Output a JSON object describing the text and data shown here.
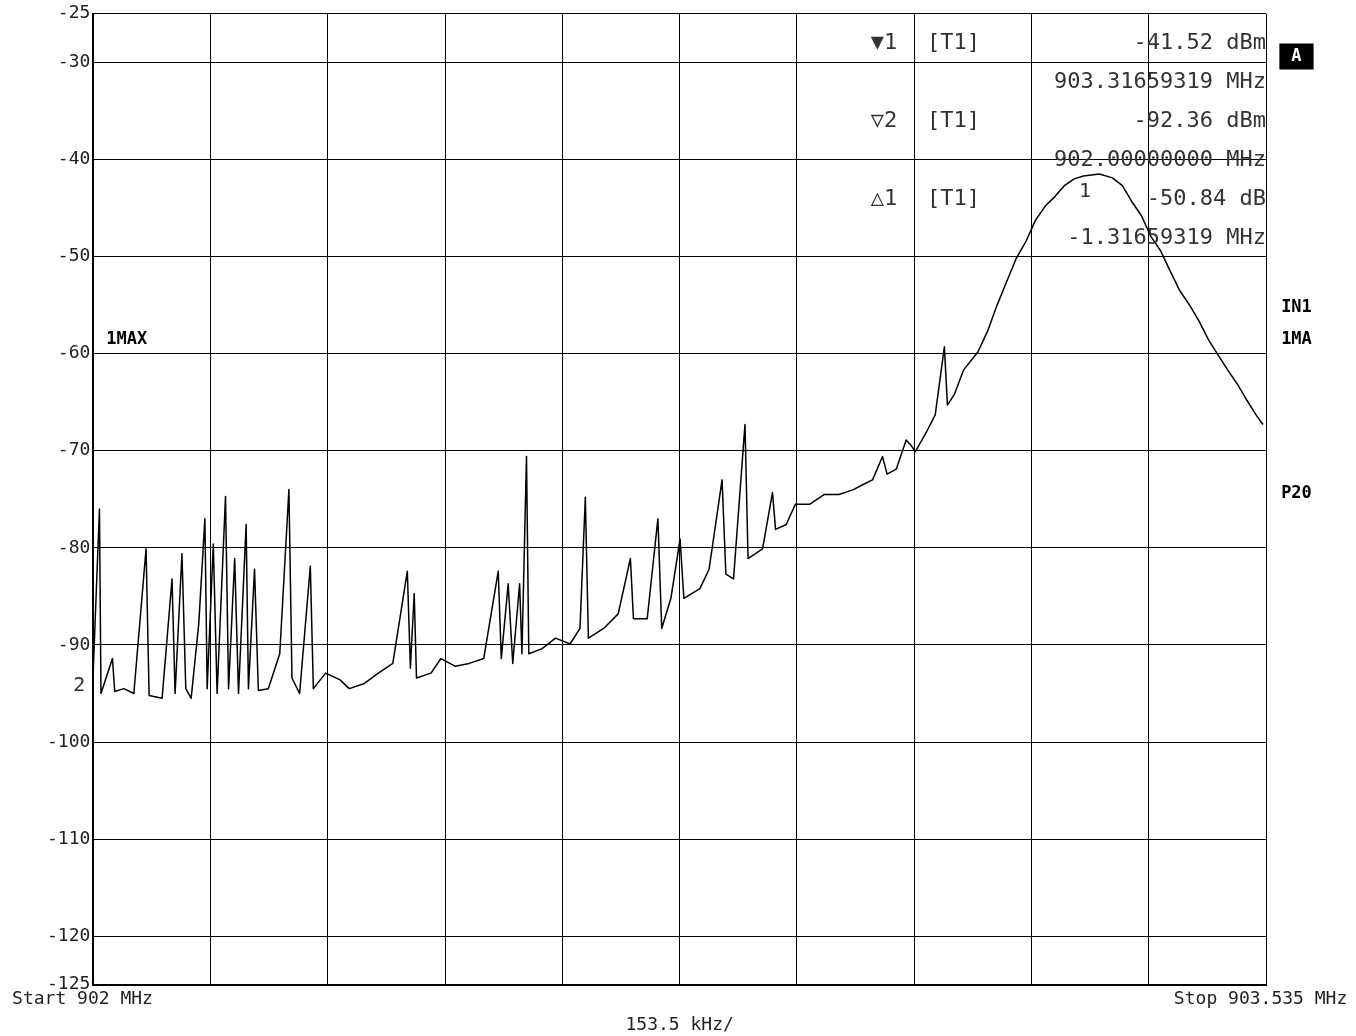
{
  "chart_data": {
    "type": "line",
    "color": "#000000",
    "marker": "none",
    "line_style": "solid",
    "grid": true,
    "xlabel": "153.5 kHz/",
    "xlim": [
      902,
      903.535
    ],
    "xticks": [
      902,
      {
        "value": 902.1535,
        "label": null
      },
      {
        "value": 902.307,
        "label": null
      },
      {
        "value": 902.4605,
        "label": null
      },
      {
        "value": 902.614,
        "label": null
      },
      {
        "value": 902.7675,
        "label": null
      },
      {
        "value": 902.921,
        "label": null
      },
      {
        "value": 903.0745,
        "label": null
      },
      {
        "value": 903.228,
        "label": null
      },
      {
        "value": 903.3815,
        "label": null
      },
      903.535
    ],
    "ylim": [
      -125,
      -25
    ],
    "yticks": [
      -125,
      -120,
      -110,
      -100,
      -90,
      -80,
      -70,
      -60,
      -50,
      -40,
      -30,
      -25
    ],
    "x": [
      902.0,
      902.008,
      902.01,
      902.025,
      902.028,
      902.04,
      902.053,
      902.069,
      902.073,
      902.09,
      902.103,
      902.107,
      902.116,
      902.121,
      902.128,
      902.138,
      902.146,
      902.149,
      902.157,
      902.162,
      902.173,
      902.177,
      902.185,
      902.19,
      902.2,
      902.203,
      902.211,
      902.216,
      902.229,
      902.244,
      902.256,
      902.26,
      902.27,
      902.284,
      902.288,
      902.304,
      902.323,
      902.335,
      902.354,
      902.373,
      902.392,
      902.411,
      902.415,
      902.42,
      902.423,
      902.442,
      902.455,
      902.474,
      902.492,
      902.511,
      902.53,
      902.534,
      902.543,
      902.549,
      902.558,
      902.561,
      902.567,
      902.57,
      902.587,
      902.605,
      902.624,
      902.637,
      902.644,
      902.648,
      902.668,
      902.687,
      902.703,
      902.707,
      902.725,
      902.739,
      902.744,
      902.756,
      902.768,
      902.773,
      902.794,
      902.806,
      902.823,
      902.828,
      902.838,
      902.853,
      902.857,
      902.876,
      902.889,
      902.893,
      902.907,
      902.919,
      902.938,
      902.957,
      902.976,
      902.995,
      903.007,
      903.02,
      903.033,
      903.039,
      903.051,
      903.064,
      903.07,
      903.076,
      903.089,
      903.102,
      903.114,
      903.118,
      903.127,
      903.139,
      903.158,
      903.171,
      903.183,
      903.196,
      903.208,
      903.221,
      903.233,
      903.246,
      903.259,
      903.271,
      903.284,
      903.296,
      903.317,
      903.334,
      903.347,
      903.359,
      903.372,
      903.384,
      903.397,
      903.409,
      903.422,
      903.435,
      903.447,
      903.46,
      903.472,
      903.485,
      903.498,
      903.51,
      903.522,
      903.531
    ],
    "values": [
      -92.4,
      -76.0,
      -95.0,
      -91.4,
      -94.8,
      -94.5,
      -95.0,
      -80.1,
      -95.2,
      -95.5,
      -83.2,
      -95.0,
      -80.6,
      -94.5,
      -95.5,
      -87.8,
      -77.0,
      -94.5,
      -79.6,
      -95.0,
      -74.7,
      -94.5,
      -81.1,
      -95.0,
      -77.6,
      -94.5,
      -82.2,
      -94.7,
      -94.5,
      -90.9,
      -74.0,
      -93.4,
      -95.0,
      -81.9,
      -94.5,
      -92.9,
      -93.6,
      -94.5,
      -94.0,
      -92.9,
      -91.9,
      -82.4,
      -92.4,
      -84.7,
      -93.4,
      -92.9,
      -91.4,
      -92.2,
      -91.9,
      -91.4,
      -82.4,
      -91.4,
      -83.7,
      -91.9,
      -83.7,
      -90.9,
      -70.6,
      -90.9,
      -90.4,
      -89.3,
      -89.9,
      -88.3,
      -74.8,
      -89.3,
      -88.3,
      -86.8,
      -81.1,
      -87.3,
      -87.3,
      -77.0,
      -88.3,
      -85.2,
      -79.1,
      -85.2,
      -84.2,
      -82.2,
      -73.0,
      -82.7,
      -83.2,
      -67.3,
      -81.1,
      -80.1,
      -74.3,
      -78.1,
      -77.6,
      -75.5,
      -75.5,
      -74.5,
      -74.5,
      -74.0,
      -73.5,
      -73.0,
      -70.6,
      -72.4,
      -71.9,
      -68.9,
      -69.4,
      -70.1,
      -68.3,
      -66.3,
      -59.3,
      -65.3,
      -64.2,
      -61.7,
      -59.8,
      -57.6,
      -55.0,
      -52.5,
      -50.2,
      -48.4,
      -46.3,
      -44.8,
      -43.8,
      -42.7,
      -42.0,
      -41.7,
      -41.5,
      -41.9,
      -42.7,
      -44.3,
      -45.8,
      -47.9,
      -49.4,
      -51.4,
      -53.5,
      -55.0,
      -56.6,
      -58.6,
      -60.1,
      -61.7,
      -63.2,
      -64.8,
      -66.3,
      -67.3
    ],
    "annotations": [
      "▼1",
      "[T1]",
      "-41.52 dBm",
      "903.31659319 MHz",
      "▽2",
      "[T1]",
      "-92.36 dBm",
      "902.00000000 MHz",
      "△1",
      "[T1]",
      "-50.84 dB",
      "-1.31659319 MHz",
      "1MAX",
      "A",
      "IN1",
      "1MA",
      "P20",
      {
        "text": "1",
        "x": 903.3166,
        "y": -41.52
      },
      {
        "text": "2",
        "x": 902,
        "y": -92.36
      },
      "Start",
      "MHz",
      "Stop",
      "MHz"
    ]
  }
}
